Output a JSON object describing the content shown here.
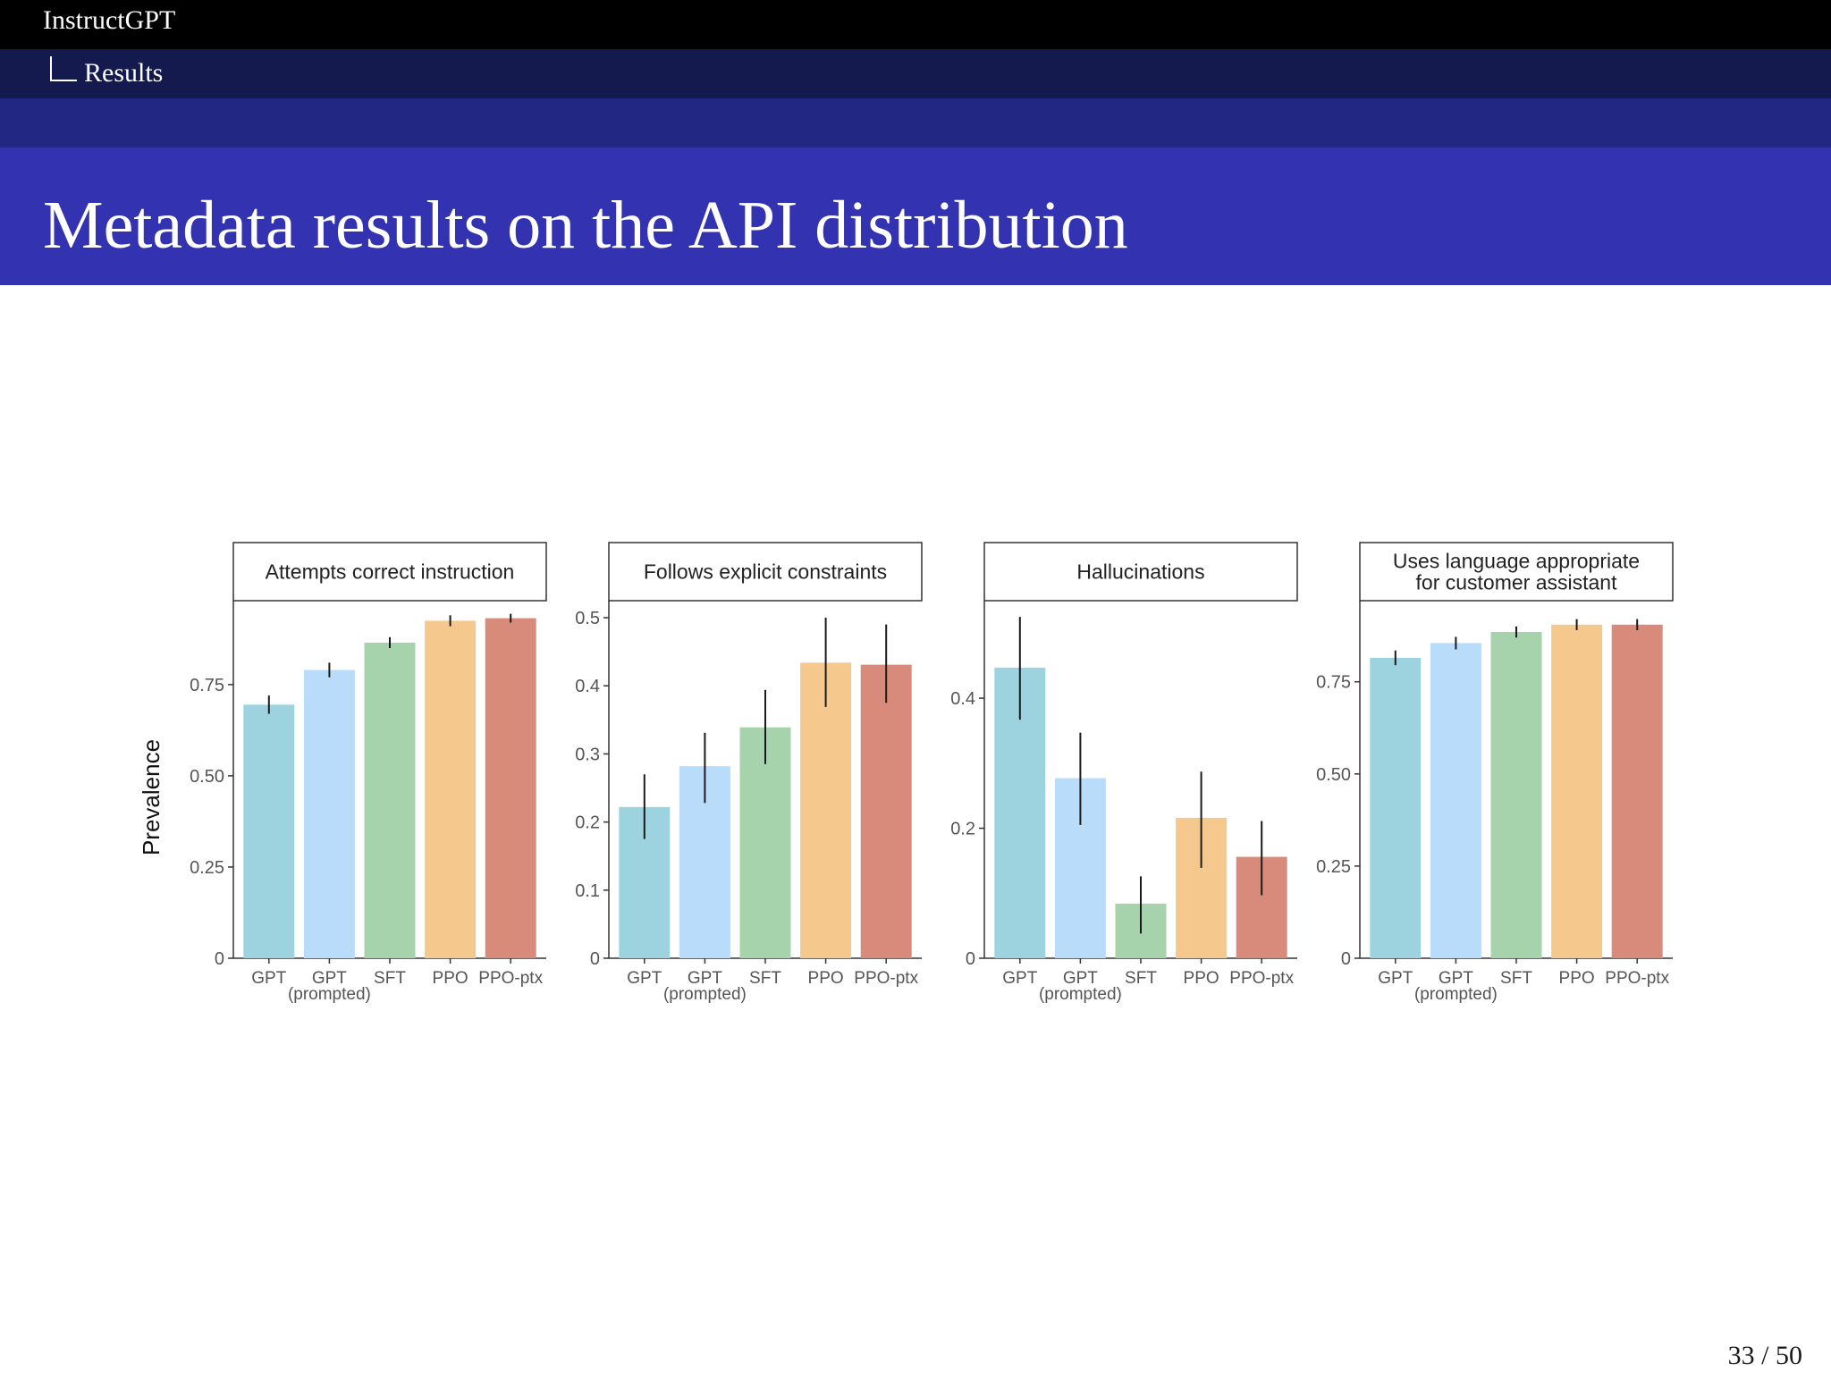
{
  "header": {
    "deck_title": "InstructGPT",
    "section_title": "Results"
  },
  "frame": {
    "title": "Metadata results on the API distribution"
  },
  "footer": {
    "page_number": "33 / 50"
  },
  "colors": {
    "nav_black": "#000000",
    "nav_section": "#141a4e",
    "title_bar": "#3333b2",
    "series": [
      "#9dd2df",
      "#b9dcfb",
      "#a6d2ac",
      "#f5c98d",
      "#d98b7b"
    ]
  },
  "chart_data": [
    {
      "type": "bar",
      "title": "Attempts correct instruction",
      "ylabel": "Prevalence",
      "categories": [
        "GPT",
        "GPT",
        "SFT",
        "PPO",
        "PPO-ptx"
      ],
      "category_sublabels": [
        "",
        "(prompted)",
        "",
        "",
        ""
      ],
      "values": [
        0.695,
        0.79,
        0.865,
        0.925,
        0.932
      ],
      "error_low": [
        0.67,
        0.77,
        0.85,
        0.91,
        0.92
      ],
      "error_high": [
        0.72,
        0.81,
        0.88,
        0.94,
        0.944
      ],
      "yticks": [
        0,
        0.25,
        0.5,
        0.75
      ],
      "ytick_labels": [
        "0",
        "0.25",
        "0.50",
        "0.75"
      ],
      "ylim": [
        0,
        0.98
      ]
    },
    {
      "type": "bar",
      "title": "Follows explicit constraints",
      "ylabel": "",
      "categories": [
        "GPT",
        "GPT",
        "SFT",
        "PPO",
        "PPO-ptx"
      ],
      "category_sublabels": [
        "",
        "(prompted)",
        "",
        "",
        ""
      ],
      "values": [
        0.222,
        0.282,
        0.339,
        0.434,
        0.431
      ],
      "error_low": [
        0.175,
        0.228,
        0.285,
        0.369,
        0.375
      ],
      "error_high": [
        0.27,
        0.331,
        0.394,
        0.5,
        0.49
      ],
      "yticks": [
        0,
        0.1,
        0.2,
        0.3,
        0.4,
        0.5
      ],
      "ytick_labels": [
        "0",
        "0.1",
        "0.2",
        "0.3",
        "0.4",
        "0.5"
      ],
      "ylim": [
        0,
        0.525
      ]
    },
    {
      "type": "bar",
      "title": "Hallucinations",
      "ylabel": "",
      "categories": [
        "GPT",
        "GPT",
        "SFT",
        "PPO",
        "PPO-ptx"
      ],
      "category_sublabels": [
        "",
        "(prompted)",
        "",
        "",
        ""
      ],
      "values": [
        0.447,
        0.277,
        0.084,
        0.216,
        0.156
      ],
      "error_low": [
        0.367,
        0.205,
        0.038,
        0.139,
        0.097
      ],
      "error_high": [
        0.525,
        0.347,
        0.126,
        0.287,
        0.211
      ],
      "yticks": [
        0,
        0.2,
        0.4
      ],
      "ytick_labels": [
        "0",
        "0.2",
        "0.4"
      ],
      "ylim": [
        0,
        0.55
      ]
    },
    {
      "type": "bar",
      "title": "Uses language appropriate for customer assistant",
      "title_lines": [
        "Uses language appropriate",
        "for customer assistant"
      ],
      "ylabel": "",
      "categories": [
        "GPT",
        "GPT",
        "SFT",
        "PPO",
        "PPO-ptx"
      ],
      "category_sublabels": [
        "",
        "(prompted)",
        "",
        "",
        ""
      ],
      "values": [
        0.815,
        0.855,
        0.885,
        0.905,
        0.905
      ],
      "error_low": [
        0.795,
        0.838,
        0.87,
        0.89,
        0.89
      ],
      "error_high": [
        0.835,
        0.872,
        0.9,
        0.92,
        0.92
      ],
      "yticks": [
        0,
        0.25,
        0.5,
        0.75
      ],
      "ytick_labels": [
        "0",
        "0.25",
        "0.50",
        "0.75"
      ],
      "ylim": [
        0,
        0.97
      ]
    }
  ]
}
